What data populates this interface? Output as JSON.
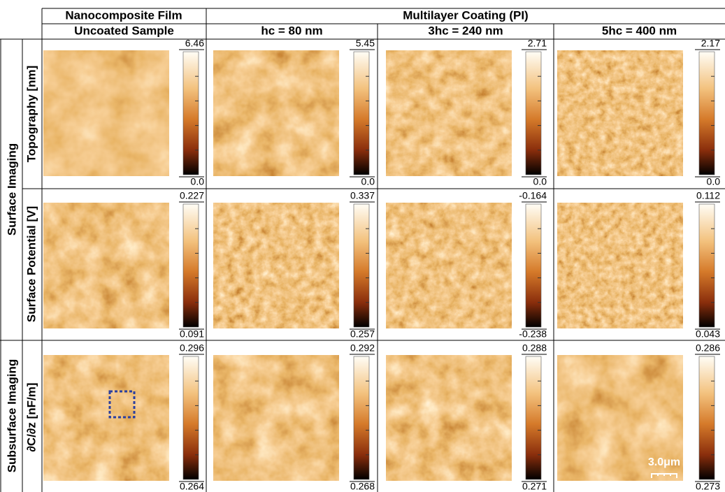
{
  "header": {
    "group_1": "Nanocomposite Film",
    "group_2": "Multilayer Coating (PI)",
    "columns": [
      "Uncoated Sample",
      "hc = 80 nm",
      "3hc = 240 nm",
      "5hc = 400 nm"
    ]
  },
  "row_groups": [
    "Surface Imaging",
    "Subsurface Imaging"
  ],
  "rows": [
    {
      "label": "Topography [nm]",
      "scales": [
        {
          "max": "6.46",
          "min": "0.0"
        },
        {
          "max": "5.45",
          "min": "0.0"
        },
        {
          "max": "2.71",
          "min": "0.0"
        },
        {
          "max": "2.17",
          "min": "0.0"
        }
      ]
    },
    {
      "label": "Surface Potential [V]",
      "scales": [
        {
          "max": "0.227",
          "min": "0.091"
        },
        {
          "max": "0.337",
          "min": "0.257"
        },
        {
          "max": "-0.164",
          "min": "-0.238"
        },
        {
          "max": "0.112",
          "min": "0.043"
        }
      ]
    },
    {
      "label": "∂C/∂z [nF/m]",
      "scales": [
        {
          "max": "0.296",
          "min": "0.264"
        },
        {
          "max": "0.292",
          "min": "0.268"
        },
        {
          "max": "0.288",
          "min": "0.271"
        },
        {
          "max": "0.286",
          "min": "0.273"
        }
      ]
    }
  ],
  "scale_bar": "3.0μm"
}
